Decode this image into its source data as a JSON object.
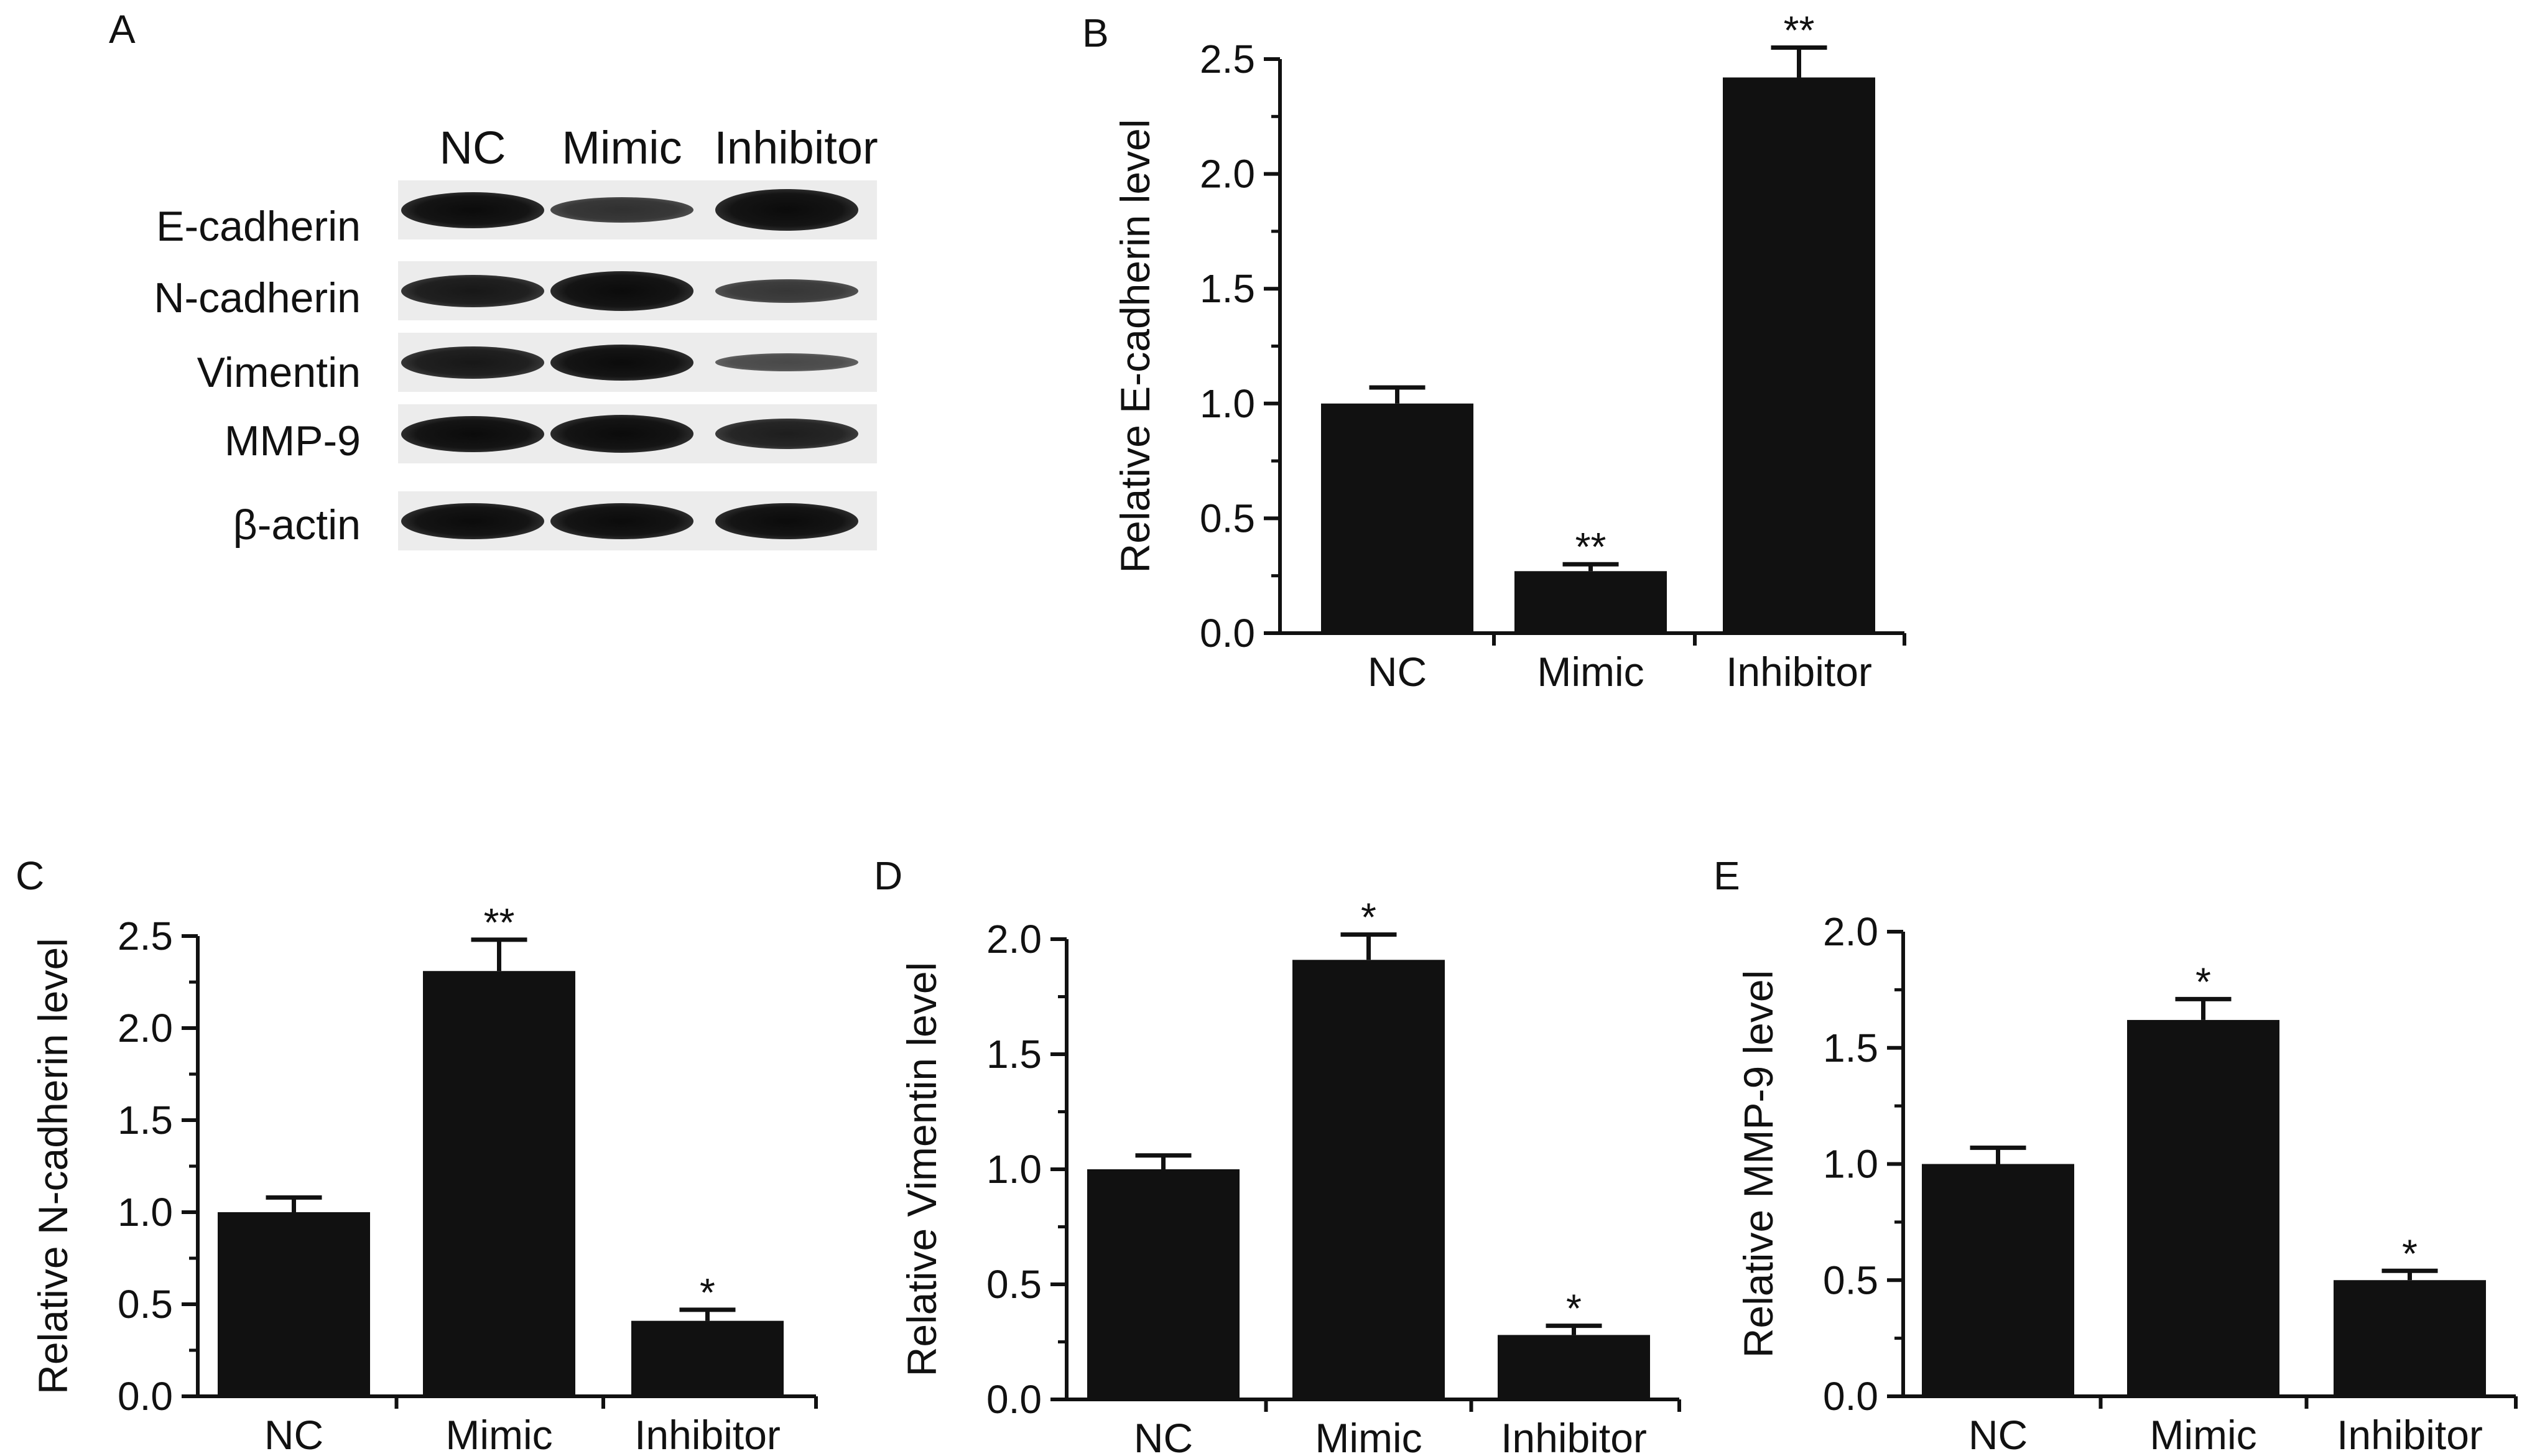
{
  "panel_a": {
    "letter": "A",
    "lanes": [
      "NC",
      "Mimic",
      "Inhibitor"
    ],
    "rows": [
      {
        "label": "E-cadherin",
        "intensities": [
          1.0,
          0.7,
          1.15
        ]
      },
      {
        "label": "N-cadherin",
        "intensities": [
          0.9,
          1.1,
          0.65
        ]
      },
      {
        "label": "Vimentin",
        "intensities": [
          0.9,
          1.0,
          0.5
        ]
      },
      {
        "label": "MMP-9",
        "intensities": [
          1.0,
          1.05,
          0.85
        ]
      },
      {
        "label": "β-actin",
        "intensities": [
          1.0,
          1.0,
          1.0
        ]
      }
    ]
  },
  "chart_data": [
    {
      "letter": "B",
      "type": "bar",
      "categories": [
        "NC",
        "Mimic",
        "Inhibitor"
      ],
      "values": [
        1.0,
        0.27,
        2.42
      ],
      "errors": [
        0.07,
        0.03,
        0.13
      ],
      "significance": [
        "",
        "**",
        "**"
      ],
      "ylabel": "Relative E-cadherin level",
      "xlabel": "",
      "ylim": [
        0,
        2.5
      ],
      "yticks": [
        "0.0",
        "0.5",
        "1.0",
        "1.5",
        "2.0",
        "2.5"
      ],
      "bar_color": "#111111"
    },
    {
      "letter": "C",
      "type": "bar",
      "categories": [
        "NC",
        "Mimic",
        "Inhibitor"
      ],
      "values": [
        1.0,
        2.31,
        0.41
      ],
      "errors": [
        0.08,
        0.17,
        0.06
      ],
      "significance": [
        "",
        "**",
        "*"
      ],
      "ylabel": "Relative N-cadherin level",
      "xlabel": "",
      "ylim": [
        0,
        2.5
      ],
      "yticks": [
        "0.0",
        "0.5",
        "1.0",
        "1.5",
        "2.0",
        "2.5"
      ],
      "bar_color": "#111111"
    },
    {
      "letter": "D",
      "type": "bar",
      "categories": [
        "NC",
        "Mimic",
        "Inhibitor"
      ],
      "values": [
        1.0,
        1.91,
        0.28
      ],
      "errors": [
        0.06,
        0.11,
        0.04
      ],
      "significance": [
        "",
        "*",
        "*"
      ],
      "ylabel": "Relative Vimentin level",
      "xlabel": "",
      "ylim": [
        0,
        2.0
      ],
      "yticks": [
        "0.0",
        "0.5",
        "1.0",
        "1.5",
        "2.0"
      ],
      "bar_color": "#111111"
    },
    {
      "letter": "E",
      "type": "bar",
      "categories": [
        "NC",
        "Mimic",
        "Inhibitor"
      ],
      "values": [
        1.0,
        1.62,
        0.5
      ],
      "errors": [
        0.07,
        0.09,
        0.04
      ],
      "significance": [
        "",
        "*",
        "*"
      ],
      "ylabel": "Relative MMP-9 level",
      "xlabel": "",
      "ylim": [
        0,
        2.0
      ],
      "yticks": [
        "0.0",
        "0.5",
        "1.0",
        "1.5",
        "2.0"
      ],
      "bar_color": "#111111"
    }
  ]
}
